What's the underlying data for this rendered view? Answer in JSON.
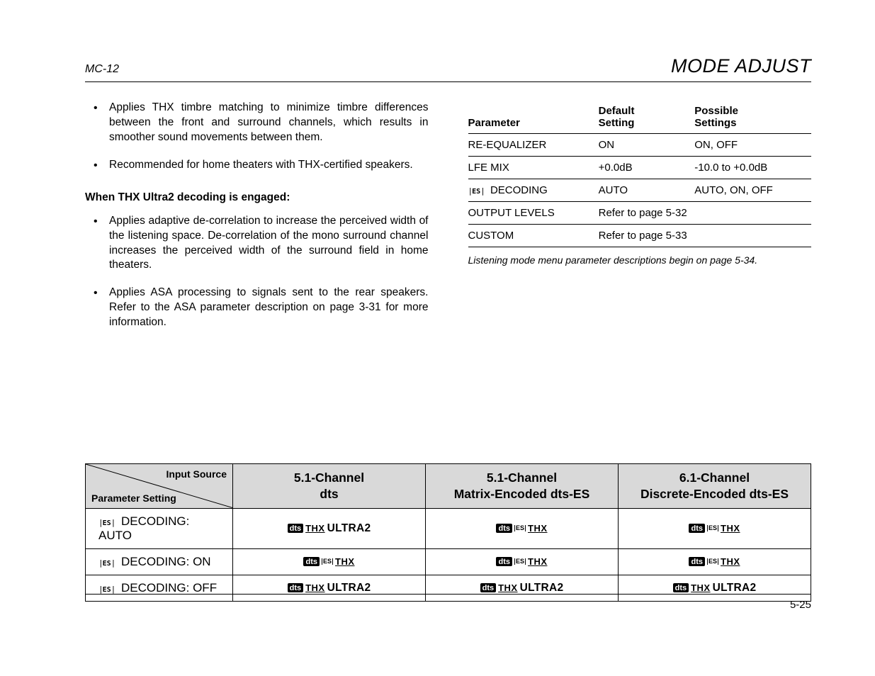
{
  "header": {
    "left": "MC-12",
    "right": "MODE ADJUST"
  },
  "left_col": {
    "bullets_top": [
      "Applies THX timbre matching to minimize timbre differences between the front and surround channels, which results in smoother sound movements between them.",
      "Recommended for home theaters with THX-certified speakers."
    ],
    "subhead": "When THX Ultra2 decoding is engaged:",
    "bullets_bottom": [
      "Applies adaptive de-correlation to increase the perceived width of the listening space. De-correlation of the mono surround channel increases the perceived width of the surround field in home theaters.",
      "Applies ASA processing to signals sent to the rear speakers. Refer to the ASA parameter description on page 3-31 for more information."
    ]
  },
  "params_table": {
    "headers": [
      "Parameter",
      "Default Setting",
      "Possible Settings"
    ],
    "rows": [
      {
        "param": "RE-EQUALIZER",
        "default": "ON",
        "possible": "ON, OFF",
        "es_prefix": false
      },
      {
        "param": "LFE MIX",
        "default": "+0.0dB",
        "possible": "-10.0 to +0.0dB",
        "es_prefix": false
      },
      {
        "param": "DECODING",
        "default": "AUTO",
        "possible": "AUTO, ON, OFF",
        "es_prefix": true
      },
      {
        "param": "OUTPUT LEVELS",
        "default": "Refer to page 5-32",
        "possible": "",
        "es_prefix": false,
        "span": true
      },
      {
        "param": "CUSTOM",
        "default": "Refer to page 5-33",
        "possible": "",
        "es_prefix": false,
        "span": true
      }
    ],
    "footnote": "Listening mode menu parameter descriptions begin on page 5-34."
  },
  "matrix": {
    "corner_top": "Input Source",
    "corner_bottom": "Parameter Setting",
    "col_headers": [
      "5.1-Channel\ndts",
      "5.1-Channel\nMatrix-Encoded dts-ES",
      "6.1-Channel\nDiscrete-Encoded dts-ES"
    ],
    "rows": [
      {
        "label": "DECODING: AUTO",
        "cells": [
          {
            "dts": true,
            "es": false,
            "thx": true,
            "ultra2": true
          },
          {
            "dts": true,
            "es": true,
            "thx": true,
            "ultra2": false
          },
          {
            "dts": true,
            "es": true,
            "thx": true,
            "ultra2": false
          }
        ]
      },
      {
        "label": "DECODING: ON",
        "cells": [
          {
            "dts": true,
            "es": true,
            "thx": true,
            "ultra2": false
          },
          {
            "dts": true,
            "es": true,
            "thx": true,
            "ultra2": false
          },
          {
            "dts": true,
            "es": true,
            "thx": true,
            "ultra2": false
          }
        ]
      },
      {
        "label": "DECODING: OFF",
        "cells": [
          {
            "dts": true,
            "es": false,
            "thx": true,
            "ultra2": true
          },
          {
            "dts": true,
            "es": false,
            "thx": true,
            "ultra2": true
          },
          {
            "dts": true,
            "es": false,
            "thx": true,
            "ultra2": true
          }
        ]
      }
    ]
  },
  "page_number": "5-25",
  "colors": {
    "header_bg": "#d9d9d9",
    "text": "#000000",
    "page_bg": "#ffffff"
  }
}
